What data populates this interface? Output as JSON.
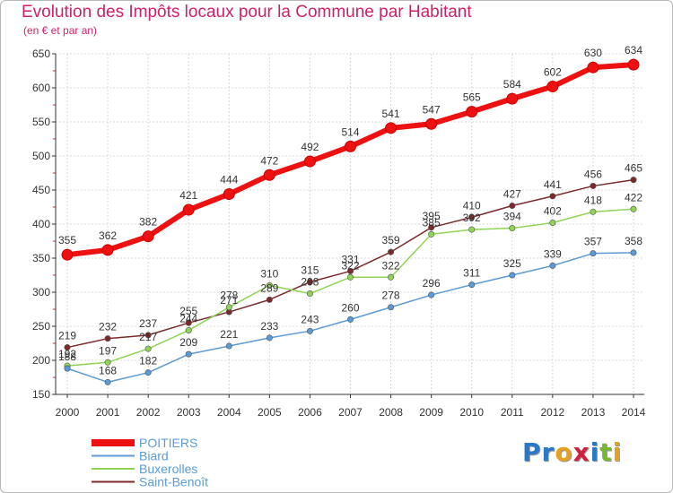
{
  "header": {
    "title": "Evolution des Impôts locaux pour la Commune par Habitant",
    "subtitle": "(en € et par an)"
  },
  "brand": {
    "letters": [
      "P",
      "r",
      "o",
      "x",
      "i",
      "t",
      "i"
    ],
    "colors": [
      "#2a78c8",
      "#2a78c8",
      "#e8a020",
      "#d02040",
      "#2a78c8",
      "#78b830",
      "#e8a020"
    ]
  },
  "chart_data": {
    "type": "line",
    "title": "Evolution des Impôts locaux pour la Commune par Habitant",
    "subtitle": "(en € et par an)",
    "xlabel": "",
    "ylabel": "",
    "x": [
      "2000",
      "2001",
      "2002",
      "2003",
      "2004",
      "2005",
      "2006",
      "2007",
      "2008",
      "2009",
      "2010",
      "2011",
      "2012",
      "2013",
      "2014"
    ],
    "ylim": [
      150,
      650
    ],
    "yticks": [
      150,
      200,
      250,
      300,
      350,
      400,
      450,
      500,
      550,
      600,
      650
    ],
    "grid": true,
    "legend_position": "bottom-left",
    "series": [
      {
        "name": "POITIERS",
        "color": "#ee1111",
        "values": [
          355,
          362,
          382,
          421,
          444,
          472,
          492,
          514,
          541,
          547,
          565,
          584,
          602,
          630,
          634
        ]
      },
      {
        "name": "Biard",
        "color": "#5b9bd5",
        "values": [
          188,
          168,
          182,
          209,
          221,
          233,
          243,
          260,
          278,
          296,
          311,
          325,
          339,
          357,
          358
        ]
      },
      {
        "name": "Buxerolles",
        "color": "#8fd454",
        "values": [
          192,
          197,
          217,
          244,
          278,
          310,
          298,
          322,
          322,
          385,
          392,
          394,
          402,
          418,
          422
        ]
      },
      {
        "name": "Saint-Benoît",
        "color": "#7a2a2a",
        "values": [
          219,
          232,
          237,
          255,
          271,
          289,
          315,
          331,
          359,
          395,
          410,
          427,
          441,
          456,
          465
        ]
      }
    ]
  }
}
